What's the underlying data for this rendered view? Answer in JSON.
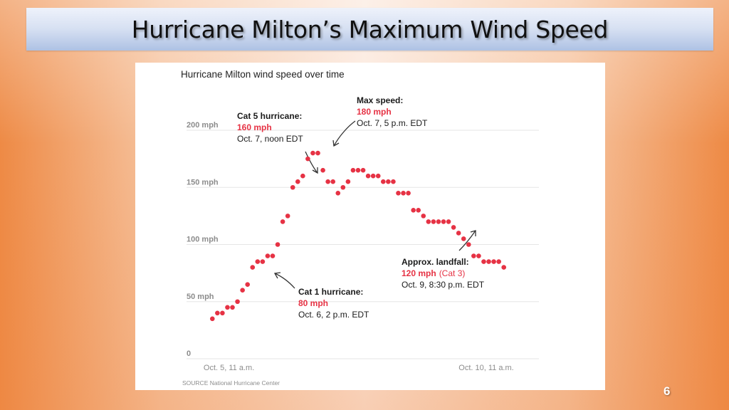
{
  "slide": {
    "title": "Hurricane Milton’s Maximum Wind Speed",
    "page_number": "6"
  },
  "chart_data": {
    "type": "scatter",
    "title": "Hurricane Milton wind speed over time",
    "xlabel": "",
    "ylabel": "",
    "unit": "mph",
    "source": "SOURCE National Hurricane Center",
    "marker_color": "#e63244",
    "ylim": [
      0,
      200
    ],
    "yticks": [
      {
        "value": 0,
        "label": "0"
      },
      {
        "value": 50,
        "label": "50 mph"
      },
      {
        "value": 100,
        "label": "100 mph"
      },
      {
        "value": 150,
        "label": "150 mph"
      },
      {
        "value": 200,
        "label": "200 mph"
      }
    ],
    "xlim_index": [
      -3.3,
      61.3
    ],
    "xticks": [
      {
        "index": 3.3,
        "label": "Oct. 5, 11 a.m."
      },
      {
        "index": 54.5,
        "label": "Oct. 10, 11 a.m."
      }
    ],
    "grid": true,
    "series": [
      {
        "name": "Maximum wind speed",
        "values": [
          35,
          40,
          40,
          45,
          45,
          50,
          60,
          65,
          80,
          85,
          85,
          90,
          90,
          100,
          120,
          125,
          150,
          155,
          160,
          175,
          180,
          180,
          165,
          155,
          155,
          145,
          150,
          155,
          165,
          165,
          165,
          160,
          160,
          160,
          155,
          155,
          155,
          145,
          145,
          145,
          130,
          130,
          125,
          120,
          120,
          120,
          120,
          120,
          115,
          110,
          105,
          100,
          90,
          90,
          85,
          85,
          85,
          85,
          80
        ]
      }
    ],
    "annotations": [
      {
        "id": "cat5",
        "heading": "Cat 5 hurricane:",
        "value": "160 mph",
        "extra": "",
        "date": "Oct. 7, noon EDT",
        "point_index": 18
      },
      {
        "id": "max",
        "heading": "Max speed:",
        "value": "180 mph",
        "extra": "",
        "date": "Oct. 7, 5 p.m. EDT",
        "point_index": 20
      },
      {
        "id": "cat1",
        "heading": "Cat 1 hurricane:",
        "value": "80 mph",
        "extra": "",
        "date": "Oct. 6, 2 p.m. EDT",
        "point_index": 8
      },
      {
        "id": "landfall",
        "heading": "Approx. landfall:",
        "value": "120 mph",
        "extra": "(Cat 3)",
        "date": "Oct. 9, 8:30 p.m. EDT",
        "point_index": 47
      }
    ]
  }
}
